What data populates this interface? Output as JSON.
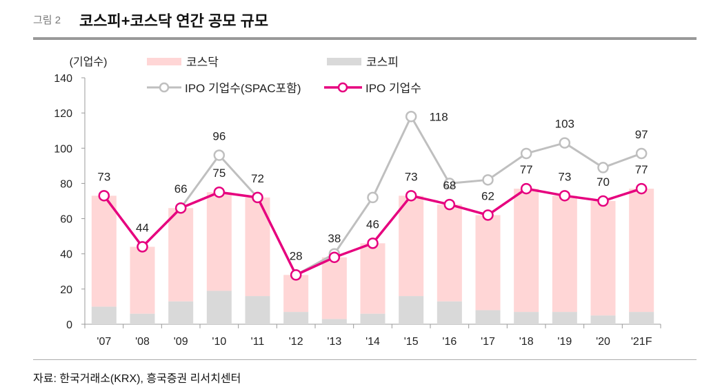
{
  "header": {
    "figure_label": "그림 2",
    "title": "코스피+코스닥 연간 공모 규모"
  },
  "source": "자료: 한국거래소(KRX), 흥국증권 리서치센터",
  "chart_data": {
    "type": "bar+line",
    "ylabel": "(기업수)",
    "ylim": [
      0,
      140
    ],
    "yticks": [
      0,
      20,
      40,
      60,
      80,
      100,
      120,
      140
    ],
    "categories": [
      "'07",
      "'08",
      "'09",
      "'10",
      "'11",
      "'12",
      "'13",
      "'14",
      "'15",
      "'16",
      "'17",
      "'18",
      "'19",
      "'20",
      "'21F"
    ],
    "stacked_bars": [
      {
        "name": "코스피",
        "color": "#d9d9d9",
        "values": [
          10,
          6,
          13,
          19,
          16,
          7,
          3,
          6,
          16,
          13,
          8,
          7,
          7,
          5,
          7
        ]
      },
      {
        "name": "코스닥",
        "color": "#ffd6d6",
        "values": [
          63,
          38,
          53,
          56,
          56,
          21,
          35,
          40,
          57,
          55,
          54,
          70,
          66,
          65,
          70
        ]
      }
    ],
    "lines": [
      {
        "name": "IPO 기업수(SPAC포함)",
        "color": "#bfbfbf",
        "values": [
          73,
          44,
          66,
          96,
          72,
          28,
          40,
          72,
          118,
          80,
          82,
          97,
          103,
          89,
          97
        ]
      },
      {
        "name": "IPO 기업수",
        "color": "#e6007e",
        "values": [
          73,
          44,
          66,
          75,
          72,
          28,
          38,
          46,
          73,
          68,
          62,
          77,
          73,
          70,
          77
        ]
      }
    ],
    "data_labels": [
      {
        "category": "'07",
        "value": 73,
        "series": "IPO 기업수"
      },
      {
        "category": "'08",
        "value": 44,
        "series": "IPO 기업수"
      },
      {
        "category": "'09",
        "value": 66,
        "series": "IPO 기업수"
      },
      {
        "category": "'10",
        "value": 96,
        "series": "IPO 기업수(SPAC포함)"
      },
      {
        "category": "'10",
        "value": 75,
        "series": "IPO 기업수"
      },
      {
        "category": "'11",
        "value": 72,
        "series": "IPO 기업수"
      },
      {
        "category": "'12",
        "value": 28,
        "series": "IPO 기업수"
      },
      {
        "category": "'13",
        "value": 38,
        "series": "IPO 기업수"
      },
      {
        "category": "'14",
        "value": 46,
        "series": "IPO 기업수"
      },
      {
        "category": "'15",
        "value": 73,
        "series": "IPO 기업수"
      },
      {
        "category": "'15",
        "value": 118,
        "series": "IPO 기업수(SPAC포함)"
      },
      {
        "category": "'16",
        "value": 68,
        "series": "IPO 기업수"
      },
      {
        "category": "'17",
        "value": 62,
        "series": "IPO 기업수"
      },
      {
        "category": "'18",
        "value": 77,
        "series": "IPO 기업수"
      },
      {
        "category": "'19",
        "value": 103,
        "series": "IPO 기업수(SPAC포함)"
      },
      {
        "category": "'19",
        "value": 73,
        "series": "IPO 기업수"
      },
      {
        "category": "'20",
        "value": 70,
        "series": "IPO 기업수"
      },
      {
        "category": "'21F",
        "value": 97,
        "series": "IPO 기업수(SPAC포함)"
      },
      {
        "category": "'21F",
        "value": 77,
        "series": "IPO 기업수"
      }
    ],
    "legend": "top",
    "grid": false
  }
}
